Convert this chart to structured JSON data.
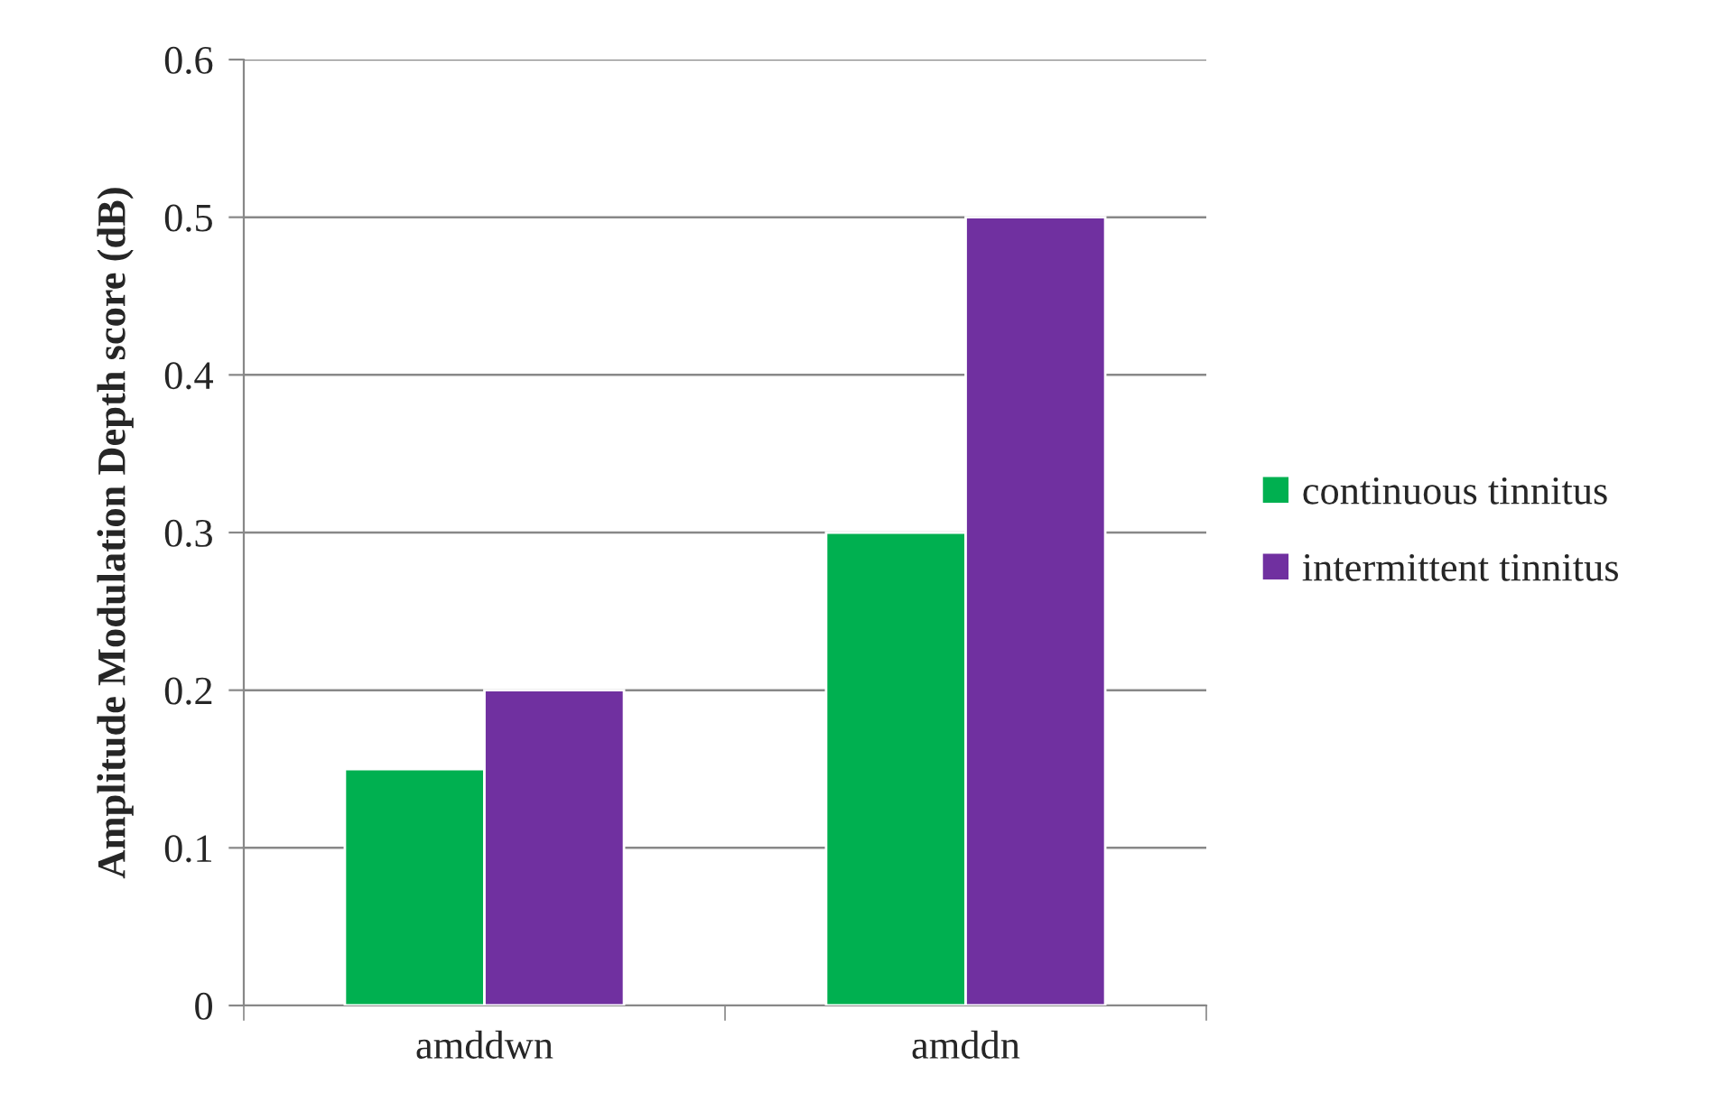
{
  "chart_data": {
    "type": "bar",
    "ylabel": "Amplitude Modulation Depth score (dB)",
    "categories": [
      "amddwn",
      "amddn"
    ],
    "series": [
      {
        "name": "continuous tinnitus",
        "color": "#00b050",
        "values": [
          0.15,
          0.3
        ]
      },
      {
        "name": "intermittent tinnitus",
        "color": "#7030a0",
        "values": [
          0.2,
          0.5
        ]
      }
    ],
    "ylim": [
      0,
      0.6
    ],
    "yticks": [
      {
        "value": 0,
        "label": "0"
      },
      0.1,
      0.2,
      0.3,
      0.4,
      0.5,
      0.6
    ],
    "grid": "y",
    "legend": "right"
  }
}
